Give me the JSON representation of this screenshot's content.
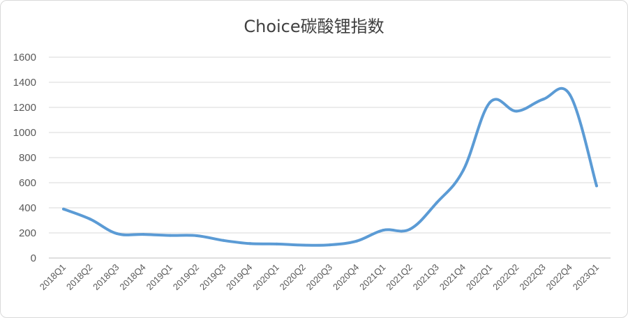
{
  "chart_data": {
    "type": "line",
    "title": "Choice碳酸锂指数",
    "xlabel": "",
    "ylabel": "",
    "ylim": [
      0,
      1600
    ],
    "yticks": [
      0,
      200,
      400,
      600,
      800,
      1000,
      1200,
      1400,
      1600
    ],
    "grid": true,
    "legend": "none",
    "categories": [
      "2018Q1",
      "2018Q2",
      "2018Q3",
      "2018Q4",
      "2019Q1",
      "2019Q2",
      "2019Q3",
      "2019Q4",
      "2020Q1",
      "2020Q2",
      "2020Q3",
      "2020Q4",
      "2021Q1",
      "2021Q2",
      "2021Q3",
      "2021Q4",
      "2022Q1",
      "2022Q2",
      "2022Q3",
      "2022Q4",
      "2023Q1"
    ],
    "series": [
      {
        "color": "#5b9bd5",
        "values": [
          390,
          310,
          195,
          188,
          180,
          178,
          140,
          115,
          112,
          103,
          105,
          135,
          222,
          230,
          440,
          700,
          1240,
          1170,
          1265,
          1300,
          575
        ]
      }
    ]
  }
}
